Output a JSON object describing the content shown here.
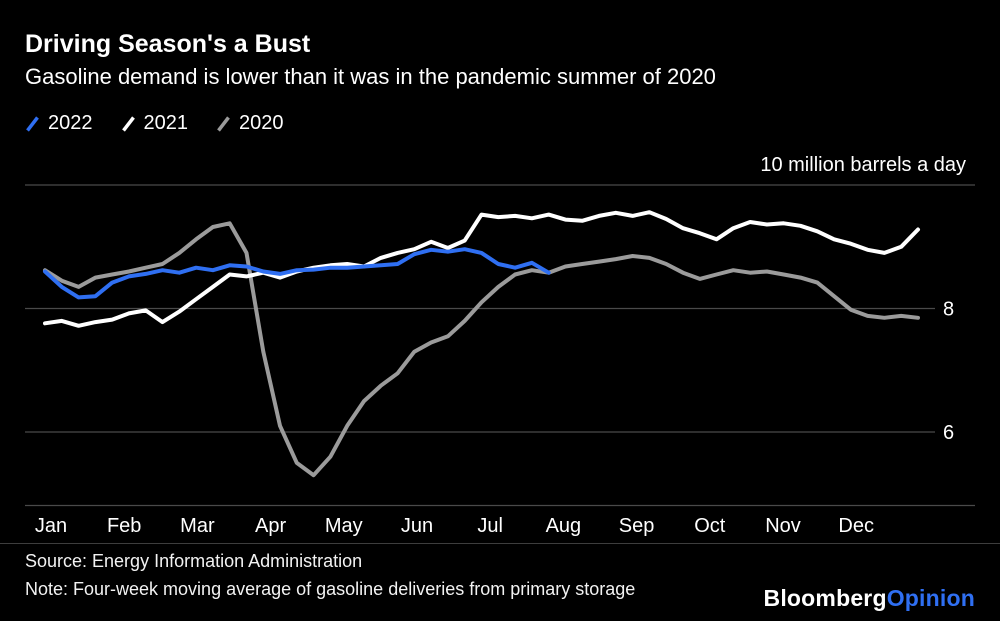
{
  "header": {
    "title": "Driving Season's a Bust",
    "subtitle": "Gasoline demand is lower than it was in the pandemic summer of 2020"
  },
  "legend": [
    {
      "label": "2022",
      "color": "#2f6ff2"
    },
    {
      "label": "2021",
      "color": "#ffffff"
    },
    {
      "label": "2020",
      "color": "#9b9b9b"
    }
  ],
  "chart_data": {
    "type": "line",
    "title": "Driving Season's a Bust",
    "subtitle": "Gasoline demand is lower than it was in the pandemic summer of 2020",
    "unit_label": "10 million barrels a day",
    "ylabel": "million barrels a day",
    "ylim": [
      4.8,
      10.3
    ],
    "grid": "horizontal",
    "legend_position": "top-left",
    "months": [
      "Jan",
      "Feb",
      "Mar",
      "Apr",
      "May",
      "Jun",
      "Jul",
      "Aug",
      "Sep",
      "Oct",
      "Nov",
      "Dec"
    ],
    "y_gridlines": [
      {
        "value": 10,
        "label": ""
      },
      {
        "value": 8,
        "label": "8"
      },
      {
        "value": 6,
        "label": "6"
      }
    ],
    "x_unit": "week-of-year",
    "series": [
      {
        "name": "2022",
        "color": "#2f6ff2",
        "values": [
          8.6,
          8.35,
          8.18,
          8.2,
          8.42,
          8.52,
          8.56,
          8.62,
          8.58,
          8.66,
          8.62,
          8.7,
          8.68,
          8.6,
          8.56,
          8.62,
          8.63,
          8.66,
          8.66,
          8.68,
          8.7,
          8.72,
          8.88,
          8.95,
          8.92,
          8.96,
          8.9,
          8.72,
          8.66,
          8.74,
          8.58
        ]
      },
      {
        "name": "2021",
        "color": "#ffffff",
        "values": [
          7.76,
          7.8,
          7.72,
          7.78,
          7.82,
          7.92,
          7.97,
          7.78,
          7.95,
          8.15,
          8.35,
          8.55,
          8.52,
          8.58,
          8.5,
          8.6,
          8.66,
          8.7,
          8.72,
          8.68,
          8.82,
          8.9,
          8.96,
          9.08,
          8.98,
          9.1,
          9.52,
          9.48,
          9.5,
          9.46,
          9.52,
          9.44,
          9.42,
          9.5,
          9.55,
          9.5,
          9.56,
          9.45,
          9.3,
          9.22,
          9.12,
          9.3,
          9.4,
          9.36,
          9.38,
          9.34,
          9.25,
          9.12,
          9.05,
          8.95,
          8.9,
          9.0,
          9.28
        ]
      },
      {
        "name": "2020",
        "color": "#9b9b9b",
        "values": [
          8.62,
          8.45,
          8.35,
          8.5,
          8.55,
          8.6,
          8.66,
          8.72,
          8.9,
          9.12,
          9.32,
          9.38,
          8.9,
          7.3,
          6.1,
          5.5,
          5.3,
          5.6,
          6.1,
          6.5,
          6.75,
          6.95,
          7.3,
          7.45,
          7.55,
          7.8,
          8.1,
          8.35,
          8.55,
          8.62,
          8.58,
          8.68,
          8.72,
          8.76,
          8.8,
          8.85,
          8.82,
          8.72,
          8.58,
          8.48,
          8.55,
          8.62,
          8.58,
          8.6,
          8.55,
          8.5,
          8.42,
          8.2,
          7.98,
          7.88,
          7.85,
          7.88,
          7.85
        ]
      }
    ]
  },
  "footer": {
    "source": "Source: Energy Information Administration",
    "note": "Note: Four-week moving average of gasoline deliveries from primary storage",
    "brand": {
      "bloomberg": "Bloomberg",
      "opinion": "Opinion"
    }
  },
  "colors": {
    "background": "#000000",
    "gridline": "#4a4a4a",
    "text": "#ffffff",
    "accent_blue": "#2f6ff2"
  }
}
